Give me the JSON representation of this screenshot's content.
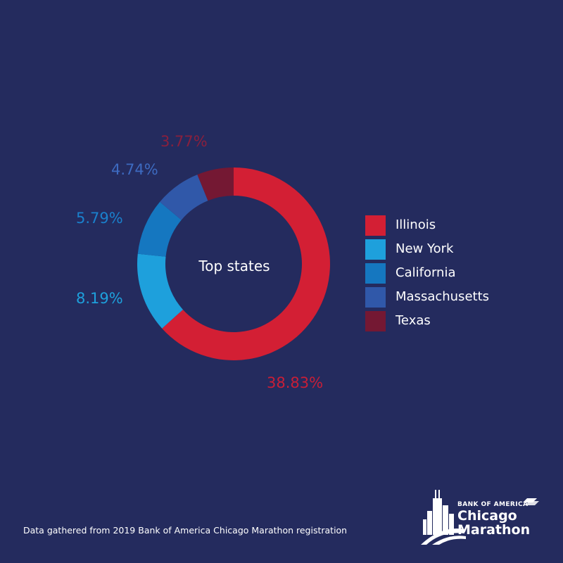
{
  "chart_data": {
    "type": "pie",
    "center_label": "Top states",
    "series": [
      {
        "name": "Illinois",
        "value": 38.83,
        "label": "38.83%",
        "color": "#d31f34"
      },
      {
        "name": "New York",
        "value": 8.19,
        "label": "8.19%",
        "color": "#1ea0dc"
      },
      {
        "name": "California",
        "value": 5.79,
        "label": "5.79%",
        "color": "#1577c0"
      },
      {
        "name": "Massachusetts",
        "value": 4.74,
        "label": "4.74%",
        "color": "#3058a9"
      },
      {
        "name": "Texas",
        "value": 3.77,
        "label": "3.77%",
        "color": "#741833"
      }
    ],
    "legend_position": "right"
  },
  "footer": {
    "note": "Data gathered from 2019 Bank of America Chicago Marathon registration"
  },
  "logo": {
    "sponsor": "BANK OF AMERICA",
    "name_line1": "Chicago",
    "name_line2": "Marathon"
  }
}
